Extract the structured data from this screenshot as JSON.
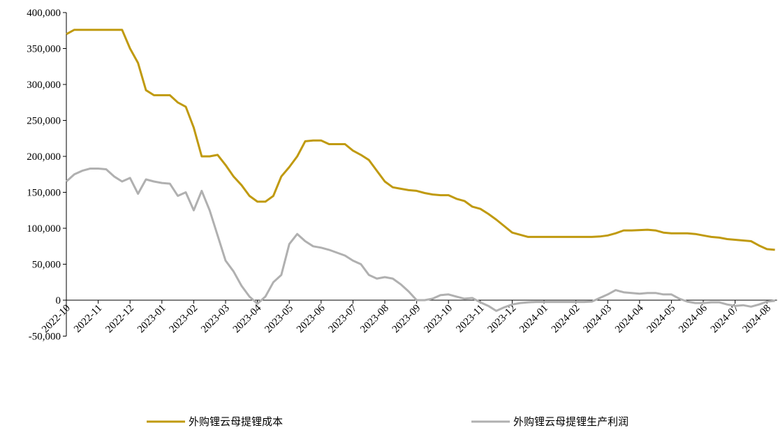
{
  "chart_data": {
    "type": "line",
    "categories": [
      "2022-10",
      null,
      null,
      null,
      "2022-11",
      null,
      null,
      null,
      "2022-12",
      null,
      null,
      null,
      "2023-01",
      null,
      null,
      null,
      "2023-02",
      null,
      null,
      null,
      "2023-03",
      null,
      null,
      null,
      "2023-04",
      null,
      null,
      null,
      "2023-05",
      null,
      null,
      null,
      "2023-06",
      null,
      null,
      null,
      "2023-07",
      null,
      null,
      null,
      "2023-08",
      null,
      null,
      null,
      "2023-09",
      null,
      null,
      null,
      "2023-10",
      null,
      null,
      null,
      "2023-11",
      null,
      null,
      null,
      "2023-12",
      null,
      null,
      null,
      "2024-01",
      null,
      null,
      null,
      "2024-02",
      null,
      null,
      null,
      "2024-03",
      null,
      null,
      null,
      "2024-04",
      null,
      null,
      null,
      "2024-05",
      null,
      null,
      null,
      "2024-06",
      null,
      null,
      null,
      "2024-07",
      null,
      null,
      null,
      "2024-08",
      null
    ],
    "series": [
      {
        "name": "外购锂云母提锂成本",
        "color": "#c09a10",
        "values": [
          370000,
          376000,
          376000,
          376000,
          376000,
          376000,
          376000,
          376000,
          350000,
          330000,
          292000,
          285000,
          285000,
          285000,
          275000,
          269000,
          240000,
          200000,
          200000,
          202000,
          188000,
          172000,
          160000,
          145000,
          137000,
          137000,
          145000,
          172000,
          185000,
          200000,
          221000,
          222000,
          222000,
          217000,
          217000,
          217000,
          208000,
          202000,
          195000,
          180000,
          165000,
          157000,
          155000,
          153000,
          152000,
          149000,
          147000,
          146000,
          146000,
          141000,
          138000,
          130000,
          127000,
          120000,
          112000,
          103000,
          94000,
          91000,
          88000,
          88000,
          88000,
          88000,
          88000,
          88000,
          88000,
          88000,
          88000,
          88500,
          90000,
          93000,
          97000,
          97000,
          97500,
          98000,
          97000,
          94000,
          93000,
          93000,
          93000,
          92000,
          90000,
          88000,
          87000,
          85000,
          84000,
          83000,
          82000,
          76000,
          71000,
          70000
        ]
      },
      {
        "name": "外购锂云母提锂生产利润",
        "color": "#b0b0b0",
        "values": [
          165000,
          175000,
          180000,
          183000,
          183000,
          182000,
          172000,
          165000,
          170000,
          148000,
          168000,
          165000,
          163000,
          162000,
          145000,
          150000,
          125000,
          152000,
          125000,
          90000,
          55000,
          40000,
          20000,
          5000,
          -5000,
          5000,
          25000,
          35000,
          78000,
          92000,
          82000,
          75000,
          73000,
          70000,
          66000,
          62000,
          55000,
          50000,
          35000,
          30000,
          32000,
          30000,
          22000,
          12000,
          0,
          0,
          2000,
          7000,
          8000,
          5000,
          2000,
          3000,
          -3000,
          -8000,
          -15000,
          -10000,
          -6000,
          -4000,
          -3000,
          -2500,
          -2500,
          -2500,
          -2500,
          -2500,
          -2500,
          -2500,
          -2000,
          3000,
          8000,
          14000,
          11000,
          10000,
          9000,
          10000,
          10000,
          8000,
          8000,
          2000,
          -2000,
          -4000,
          -4000,
          -3000,
          -3000,
          -6000,
          -8000,
          -7000,
          -9000,
          -6000,
          -2000,
          -1000
        ]
      }
    ],
    "ylim": [
      -50000,
      400000
    ],
    "yticks": [
      {
        "value": -50000,
        "label": "-50,000"
      },
      0,
      {
        "value": 50000,
        "label": "50,000"
      },
      {
        "value": 100000,
        "label": "100,000"
      },
      {
        "value": 150000,
        "label": "150,000"
      },
      {
        "value": 200000,
        "label": "200,000"
      },
      {
        "value": 250000,
        "label": "250,000"
      },
      {
        "value": 300000,
        "label": "300,000"
      },
      {
        "value": 350000,
        "label": "350,000"
      },
      {
        "value": 400000,
        "label": "400,000"
      }
    ],
    "grid": false,
    "legend": "bottom"
  }
}
